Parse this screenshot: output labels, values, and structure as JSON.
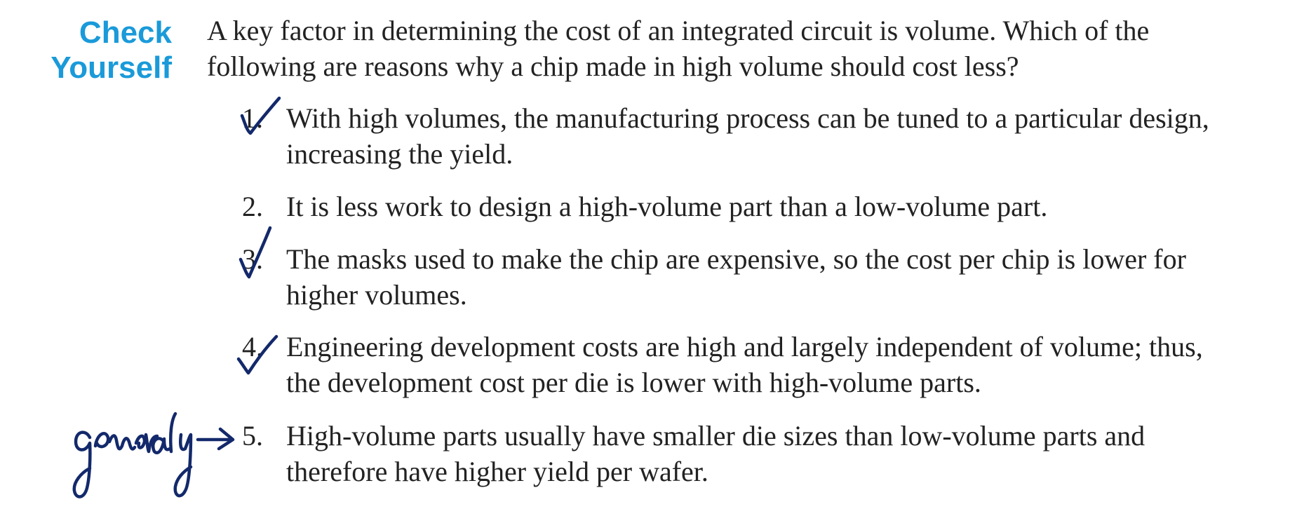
{
  "heading": {
    "line1": "Check",
    "line2": "Yourself"
  },
  "question": "A key factor in determining the cost of an integrated circuit is volume. Which of the following are reasons why a chip made in high volume should cost less?",
  "options": [
    {
      "number": "1.",
      "text": "With high volumes, the manufacturing process can be tuned to a particular design, increasing the yield.",
      "checked": true
    },
    {
      "number": "2.",
      "text": "It is less work to design a high-volume part than a low-volume part.",
      "checked": false
    },
    {
      "number": "3.",
      "text": "The masks used to make the chip are expensive, so the cost per chip is lower for higher volumes.",
      "checked": true
    },
    {
      "number": "4.",
      "text": "Engineering development costs are high and largely independent of volume; thus, the development cost per die is lower with high-volume parts.",
      "checked": true
    },
    {
      "number": "5.",
      "text": "High-volume parts usually have smaller die sizes than low-volume parts and therefore have higher yield per wafer.",
      "checked": false
    }
  ],
  "annotation": {
    "note": "generally",
    "ink_color": "#13296b"
  },
  "colors": {
    "heading": "#1a9ad9",
    "body_text": "#222222"
  }
}
